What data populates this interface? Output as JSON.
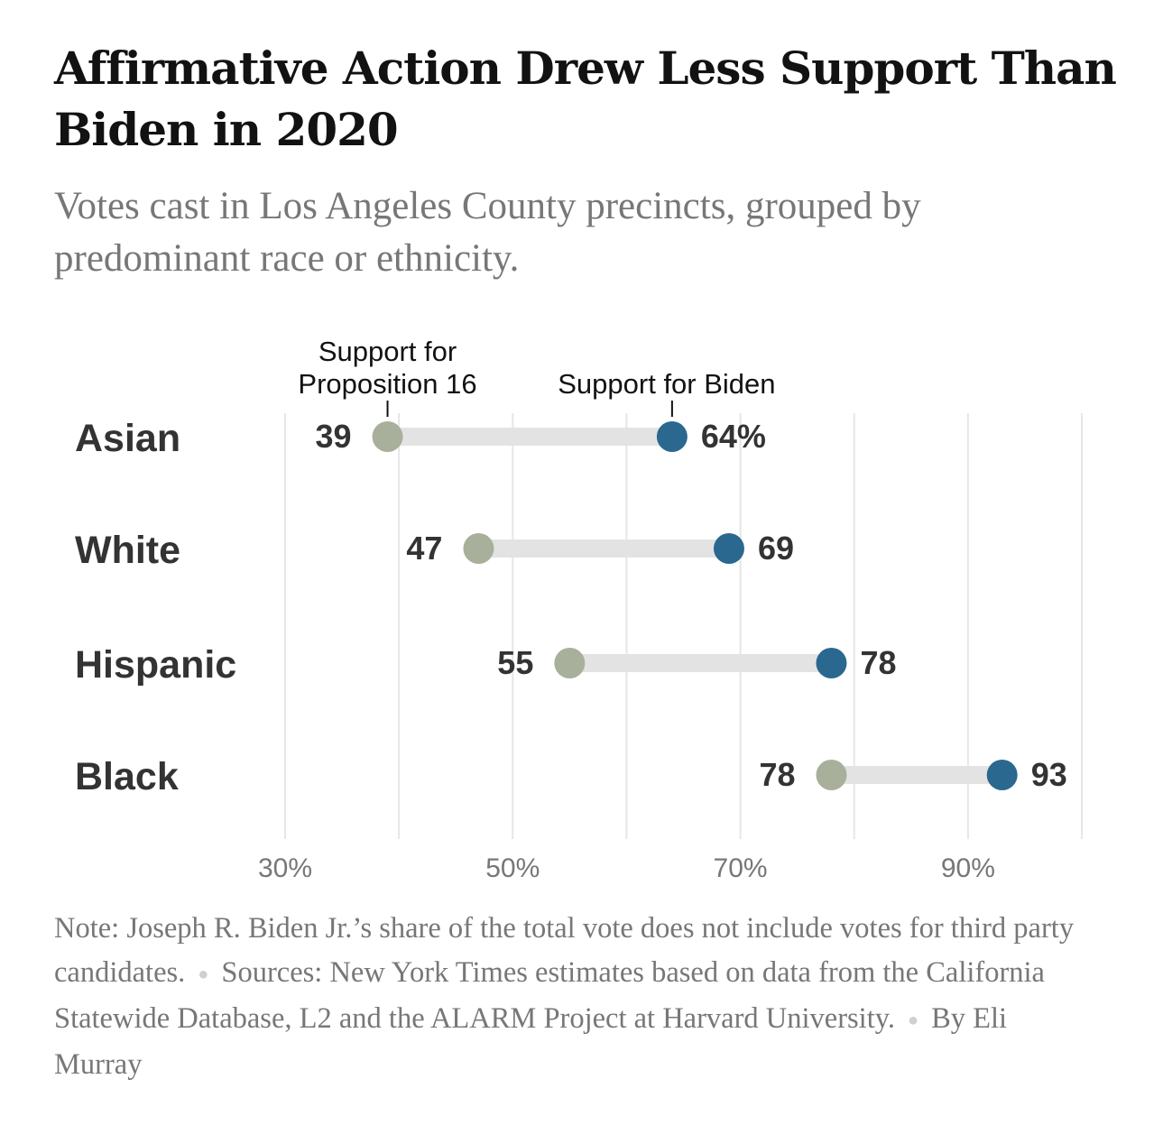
{
  "title": "Affirmative Action Drew Less Support Than Biden in 2020",
  "subtitle": "Votes cast in Los Angeles County precincts, grouped by predominant race or ethnicity.",
  "chart_data": {
    "type": "dot-range",
    "title": "Affirmative Action Drew Less Support Than Biden in 2020",
    "xlim": [
      30,
      100
    ],
    "x_ticks": [
      30,
      40,
      50,
      60,
      70,
      80,
      90,
      100
    ],
    "x_tick_labels": [
      {
        "value": 30,
        "label": "30%"
      },
      {
        "value": 50,
        "label": "50%"
      },
      {
        "value": 70,
        "label": "70%"
      },
      {
        "value": 90,
        "label": "90%"
      }
    ],
    "grid": true,
    "categories": [
      "Asian",
      "White",
      "Hispanic",
      "Black"
    ],
    "series": [
      {
        "name": "Support for Proposition 16",
        "color": "#a8b09b",
        "values": [
          39,
          47,
          55,
          78
        ],
        "labels": [
          "39",
          "47",
          "55",
          "78"
        ]
      },
      {
        "name": "Support for Biden",
        "color": "#2a6890",
        "values": [
          64,
          69,
          78,
          93
        ],
        "labels": [
          "64%",
          "69",
          "78",
          "93"
        ]
      }
    ],
    "annotations": {
      "prop16_line1": "Support for",
      "prop16_line2": "Proposition 16",
      "biden": "Support for Biden"
    }
  },
  "colors": {
    "connector": "#e3e3e3",
    "grid": "#e6e6e6"
  },
  "notes": {
    "note": "Note: Joseph R. Biden Jr.’s share of the total vote does not include votes for third party candidates.",
    "sources": "Sources: New York Times estimates based on data from the California Statewide Database, L2 and the ALARM Project at Harvard University.",
    "byline": "By Eli Murray"
  }
}
